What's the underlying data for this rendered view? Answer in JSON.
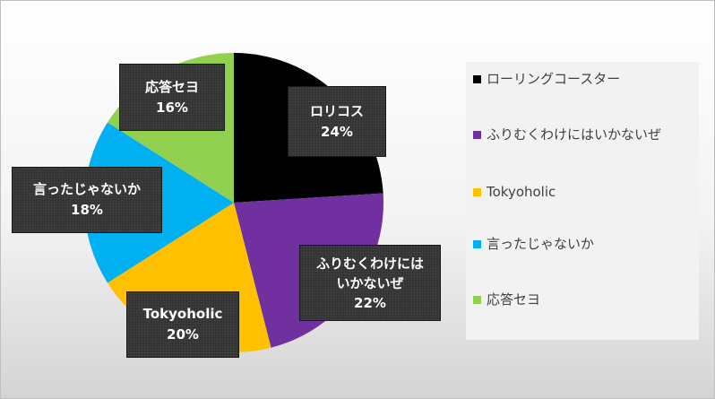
{
  "chart_data": {
    "type": "pie",
    "title": "",
    "slices": [
      {
        "label": "ローリングコースター",
        "value": 24,
        "color": "#000000",
        "data_label": "ロリコス",
        "percent_text": "24%"
      },
      {
        "label": "ふりむくわけにはいかないぜ",
        "value": 22,
        "color": "#7030a0",
        "data_label": "ふりむくわけには いかないぜ",
        "percent_text": "22%"
      },
      {
        "label": "Tokyoholic",
        "value": 20,
        "color": "#ffc000",
        "data_label": "Tokyoholic",
        "percent_text": "20%"
      },
      {
        "label": "言ったじゃないか",
        "value": 18,
        "color": "#00b0f0",
        "data_label": "言ったじゃないか",
        "percent_text": "18%"
      },
      {
        "label": "応答セヨ",
        "value": 16,
        "color": "#92d050",
        "data_label": "応答セヨ",
        "percent_text": "16%"
      }
    ],
    "legend_position": "right",
    "start_angle": "12 o'clock",
    "direction": "clockwise"
  }
}
